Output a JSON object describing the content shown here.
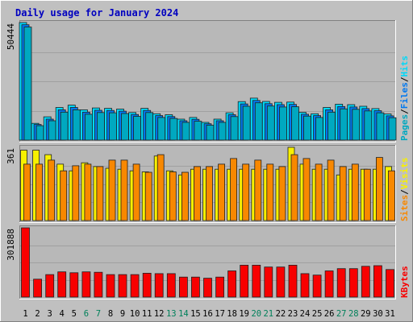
{
  "title": "Daily usage for January 2024",
  "colors": {
    "background": "#c0c0c0",
    "plot": "#b8b8b8",
    "title": "#0000c0",
    "hits": "#00d8f8",
    "files": "#0078f0",
    "pages": "#00a8c0",
    "visits": "#f8f000",
    "sites": "#f88800",
    "kbytes": "#f80000",
    "weekend_label": "#00805a"
  },
  "chart_data": [
    {
      "type": "bar",
      "panel": "hits-files-pages",
      "axis_max_label": "50444",
      "legend": [
        "Pages",
        "Files",
        "Hits"
      ],
      "categories": [
        "1",
        "2",
        "3",
        "4",
        "5",
        "6",
        "7",
        "8",
        "9",
        "10",
        "11",
        "12",
        "13",
        "14",
        "15",
        "16",
        "17",
        "18",
        "19",
        "20",
        "21",
        "22",
        "23",
        "24",
        "25",
        "26",
        "27",
        "28",
        "29",
        "30",
        "31"
      ],
      "weekend_days": [
        "6",
        "7",
        "13",
        "14",
        "20",
        "21",
        "27",
        "28"
      ],
      "ylim": [
        0,
        50444
      ],
      "series": [
        {
          "name": "Hits",
          "values": [
            50444,
            7200,
            10000,
            14000,
            15000,
            13000,
            13800,
            13600,
            13300,
            11800,
            13600,
            11300,
            10900,
            9000,
            9700,
            7600,
            9000,
            11700,
            16500,
            18000,
            16600,
            16200,
            16300,
            11900,
            11300,
            14000,
            15400,
            15200,
            14500,
            13500,
            11200
          ]
        },
        {
          "name": "Files",
          "values": [
            49500,
            6700,
            9000,
            13000,
            14000,
            12000,
            12800,
            12700,
            12400,
            11000,
            12700,
            10500,
            10100,
            8300,
            8900,
            7000,
            8300,
            10900,
            15500,
            17000,
            15600,
            15200,
            15300,
            11100,
            10500,
            13000,
            14400,
            14200,
            13500,
            12600,
            10400
          ]
        },
        {
          "name": "Pages",
          "values": [
            48500,
            6200,
            8300,
            12000,
            13000,
            11100,
            11800,
            11700,
            11400,
            10200,
            11800,
            9700,
            9300,
            7600,
            8100,
            6400,
            7600,
            10100,
            14500,
            16000,
            14600,
            14200,
            14300,
            10300,
            9700,
            12000,
            13400,
            13200,
            12500,
            11700,
            9600
          ]
        }
      ]
    },
    {
      "type": "bar",
      "panel": "visits-sites",
      "axis_max_label": "361",
      "legend": [
        "Sites",
        "Visits"
      ],
      "categories": [
        "1",
        "2",
        "3",
        "4",
        "5",
        "6",
        "7",
        "8",
        "9",
        "10",
        "11",
        "12",
        "13",
        "14",
        "15",
        "16",
        "17",
        "18",
        "19",
        "20",
        "21",
        "22",
        "23",
        "24",
        "25",
        "26",
        "27",
        "28",
        "29",
        "30",
        "31"
      ],
      "ylim": [
        0,
        361
      ],
      "series": [
        {
          "name": "Visits",
          "values": [
            347,
            347,
            325,
            278,
            245,
            285,
            266,
            258,
            253,
            245,
            240,
            318,
            245,
            225,
            253,
            253,
            253,
            253,
            253,
            253,
            253,
            253,
            361,
            278,
            253,
            253,
            225,
            253,
            253,
            253,
            266
          ]
        },
        {
          "name": "Sites",
          "values": [
            278,
            278,
            298,
            245,
            270,
            278,
            266,
            298,
            298,
            278,
            238,
            325,
            240,
            238,
            266,
            266,
            278,
            306,
            278,
            298,
            278,
            266,
            325,
            306,
            278,
            298,
            266,
            278,
            253,
            311,
            245
          ]
        }
      ]
    },
    {
      "type": "bar",
      "panel": "kbytes",
      "axis_max_label": "301888",
      "legend": [
        "KBytes"
      ],
      "categories": [
        "1",
        "2",
        "3",
        "4",
        "5",
        "6",
        "7",
        "8",
        "9",
        "10",
        "11",
        "12",
        "13",
        "14",
        "15",
        "16",
        "17",
        "18",
        "19",
        "20",
        "21",
        "22",
        "23",
        "24",
        "25",
        "26",
        "27",
        "28",
        "29",
        "30",
        "31"
      ],
      "ylim": [
        0,
        301888
      ],
      "series": [
        {
          "name": "KBytes",
          "values": [
            301888,
            78000,
            98000,
            110000,
            106000,
            110000,
            108000,
            98000,
            98000,
            98000,
            104000,
            102000,
            102000,
            87000,
            87000,
            82000,
            87000,
            114000,
            139000,
            139000,
            131000,
            131000,
            139000,
            102000,
            96000,
            114000,
            124000,
            124000,
            134000,
            137000,
            120000
          ]
        }
      ]
    }
  ]
}
